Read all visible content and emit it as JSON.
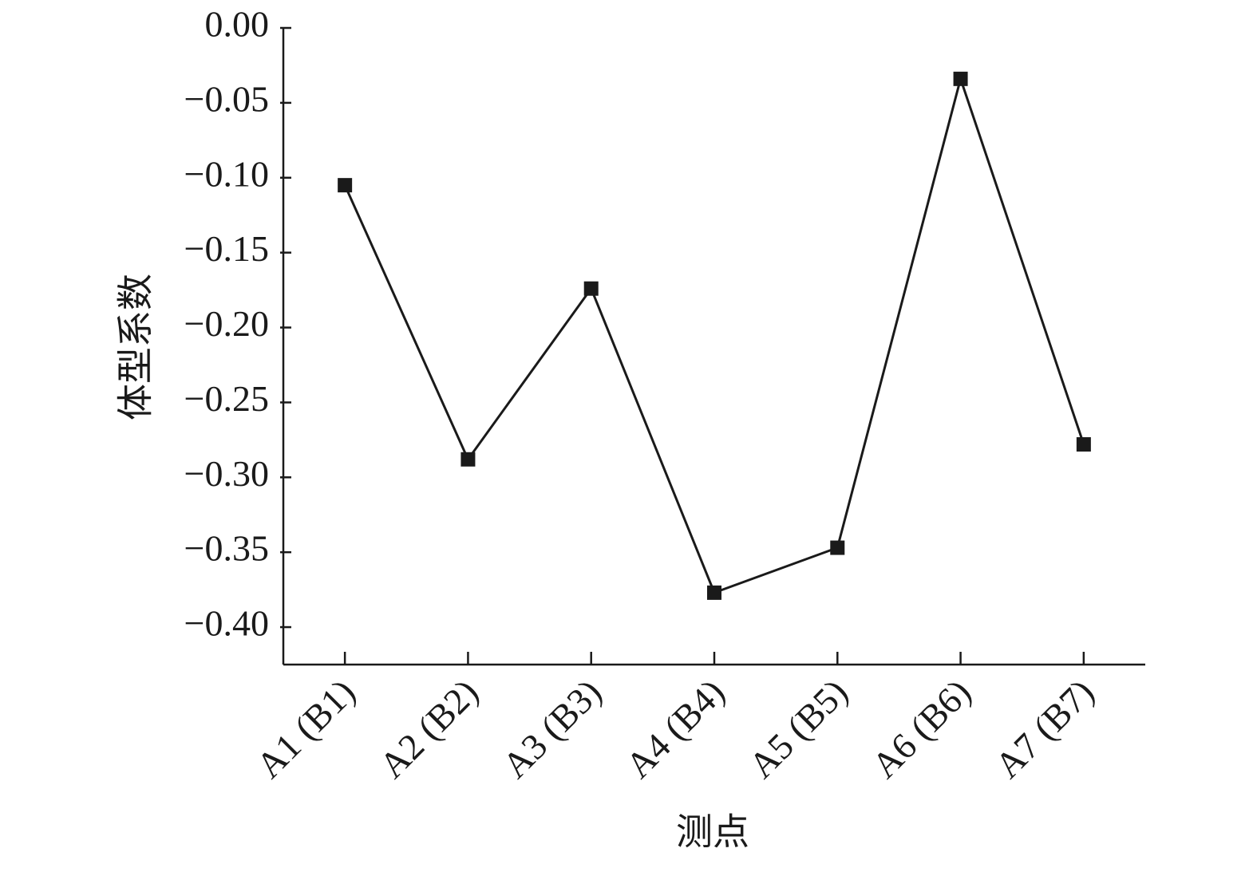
{
  "chart_data": {
    "type": "line",
    "x_label": "测点",
    "y_label": "体型系数",
    "categories": [
      "A1 (B1)",
      "A2 (B2)",
      "A3 (B3)",
      "A4 (B4)",
      "A5 (B5)",
      "A6 (B6)",
      "A7 (B7)"
    ],
    "values": [
      -0.105,
      -0.288,
      -0.174,
      -0.377,
      -0.347,
      -0.034,
      -0.278
    ],
    "color": "#1a1a1a",
    "ylim": [
      -0.425,
      0
    ],
    "yticks": [
      {
        "value": 0,
        "label": "0.00"
      },
      {
        "value": -0.05,
        "label": "−0.05"
      },
      {
        "value": -0.1,
        "label": "−0.10"
      },
      {
        "value": -0.15,
        "label": "−0.15"
      },
      {
        "value": -0.2,
        "label": "−0.20"
      },
      {
        "value": -0.25,
        "label": "−0.25"
      },
      {
        "value": -0.3,
        "label": "−0.30"
      },
      {
        "value": -0.35,
        "label": "−0.35"
      },
      {
        "value": -0.4,
        "label": "−0.40"
      }
    ]
  }
}
